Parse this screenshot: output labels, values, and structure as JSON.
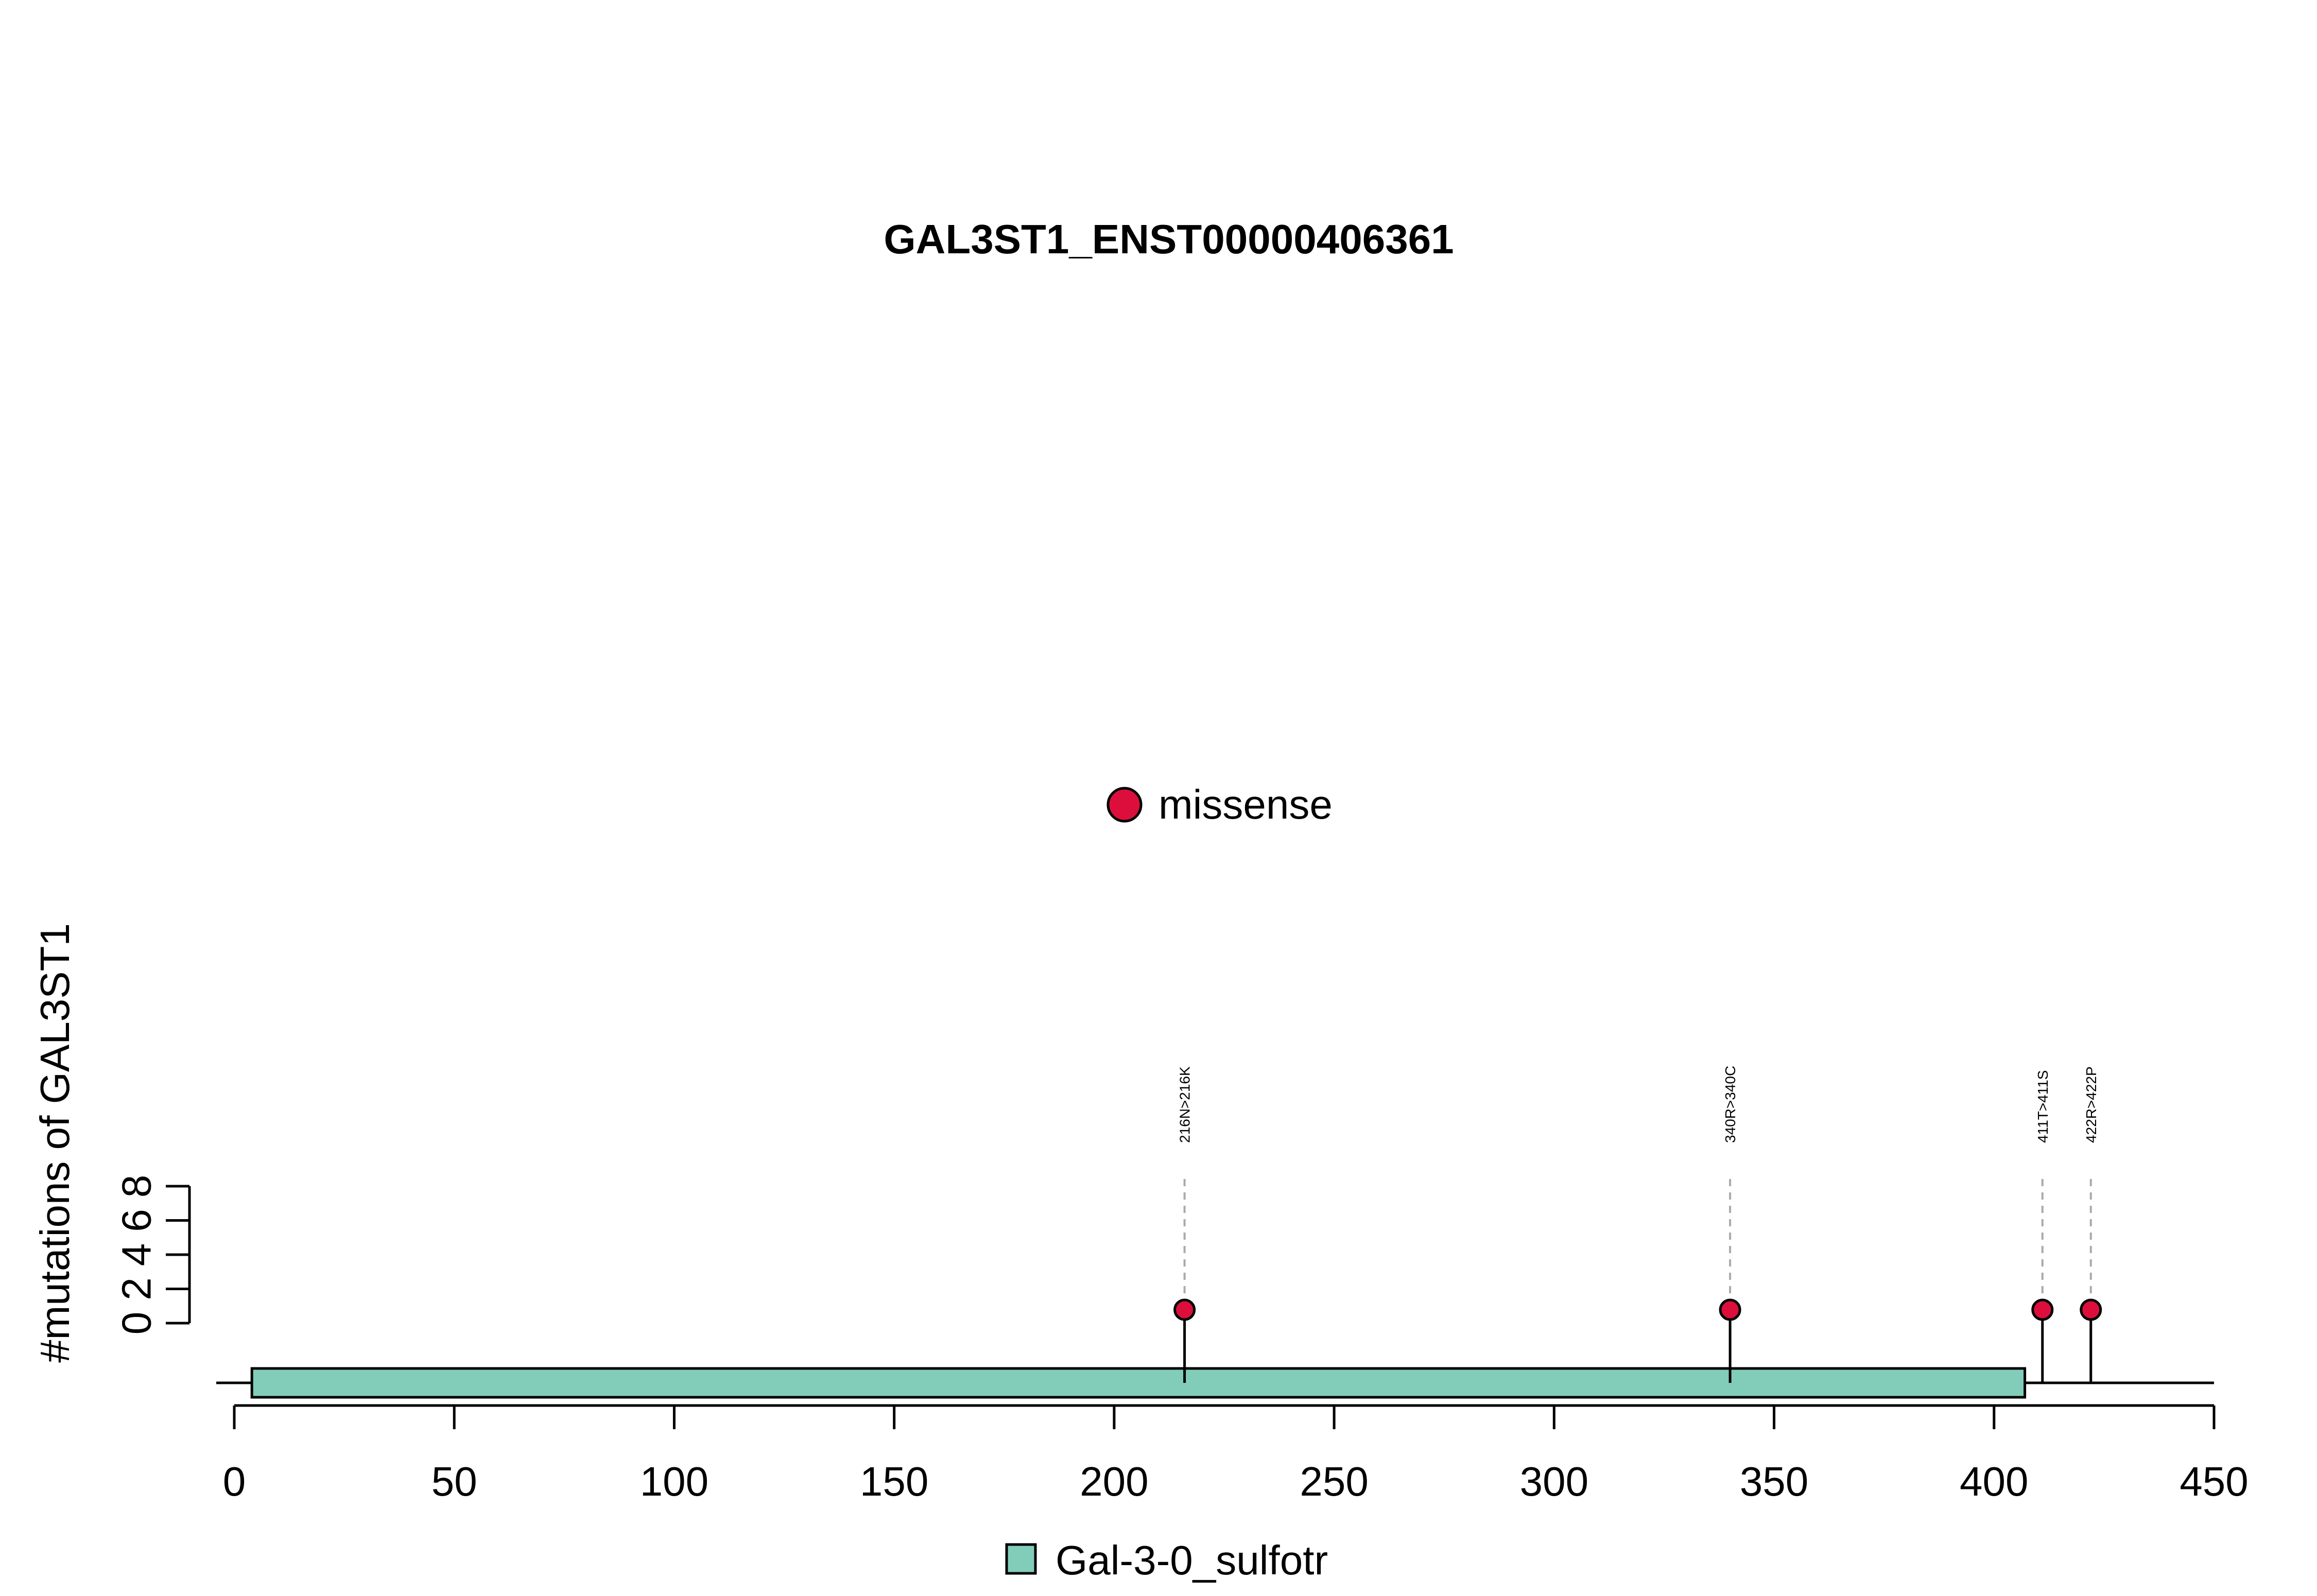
{
  "chart_data": {
    "type": "lollipop",
    "title": "GAL3ST1_ENST00000406361",
    "ylabel": "#mutations of GAL3ST1",
    "xlabel": "",
    "xlim": [
      0,
      450
    ],
    "x_ticks": [
      0,
      50,
      100,
      150,
      200,
      250,
      300,
      350,
      400,
      450
    ],
    "ylim": [
      0,
      8
    ],
    "y_ticks": [
      0,
      2,
      4,
      6,
      8
    ],
    "protein_length": 450,
    "legend_mutation": {
      "label": "missense",
      "color": "#DC0F3C"
    },
    "mutations": [
      {
        "position": 216,
        "count": 1,
        "label": "216N>216K",
        "type": "missense"
      },
      {
        "position": 340,
        "count": 1,
        "label": "340R>340C",
        "type": "missense"
      },
      {
        "position": 411,
        "count": 1,
        "label": "411T>411S",
        "type": "missense"
      },
      {
        "position": 422,
        "count": 1,
        "label": "422R>422P",
        "type": "missense"
      }
    ],
    "domains": [
      {
        "name": "Gal-3-0_sulfotr",
        "start": 4,
        "end": 407,
        "color": "#82CDB9"
      }
    ],
    "legend_domain": {
      "label": "Gal-3-0_sulfotr",
      "color": "#82CDB9"
    }
  }
}
